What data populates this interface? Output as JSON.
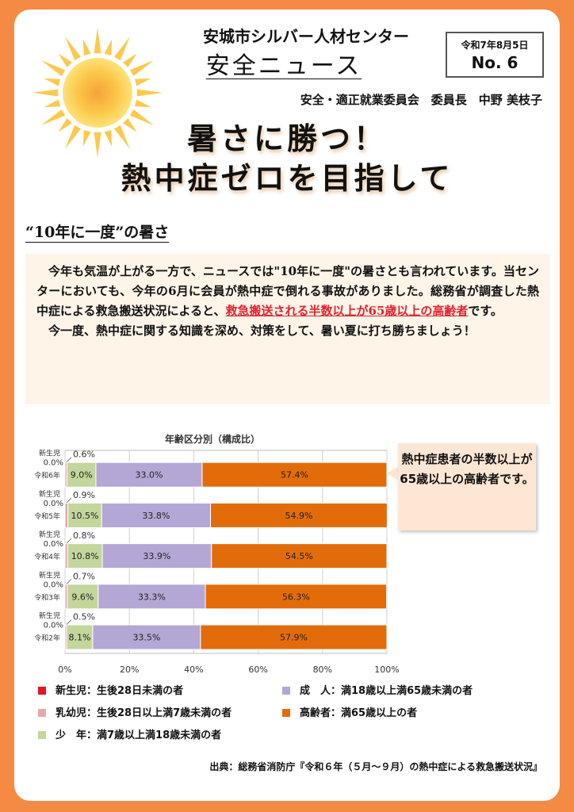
{
  "header": {
    "organization": "安城市シルバー人材センター",
    "newsletter_title": "安全ニュース",
    "issue_date": "令和7年8月5日",
    "issue_no": "No. 6",
    "committee": "安全・適正就業委員会　委員長　中野 美枝子"
  },
  "headline": {
    "line1": "暑さに勝つ！",
    "line2": "熱中症ゼロを目指して"
  },
  "section": {
    "title": "“10年に一度”の暑さ",
    "para1_before": "今年も気温が上がる一方で、ニュースでは\"10年に一度\"の暑さとも言われています。当センターにおいても、今年の6月に会員が熱中症で倒れる事故がありました。総務省が調査した熱中症による救急搬送状況によると、",
    "para1_highlight": "救急搬送される半数以上が65歳以上の高齢者",
    "para1_after": "です。",
    "para2": "今一度、熱中症に関する知識を深め、対策をして、暑い夏に打ち勝ちましょう！"
  },
  "callout": "熱中症患者の半数以上が65歳以上の高齢者です。",
  "legend": [
    {
      "label": "新生児：生後28日未満の者",
      "color": "#e8141e"
    },
    {
      "label": "成　人：満18歳以上満65歳未満の者",
      "color": "#b4a7d6"
    },
    {
      "label": "乳幼児：生後28日以上満7歳未満の者",
      "color": "#e8a7ab"
    },
    {
      "label": "高齢者：満65歳以上の者",
      "color": "#e36c0a"
    },
    {
      "label": "少　年：満7歳以上満18歳未満の者",
      "color": "#c3d69b"
    }
  ],
  "source": "出典：総務省消防庁『令和６年（５月～９月）の熱中症による救急搬送状況』",
  "chart_data": {
    "type": "bar",
    "orientation": "horizontal-stacked-100",
    "title": "年齢区分別（構成比）",
    "categories": [
      "令和6年",
      "令和5年",
      "令和4年",
      "令和3年",
      "令和2年"
    ],
    "series": [
      {
        "name": "新生児",
        "color": "#e8141e",
        "values": [
          0.0,
          0.0,
          0.0,
          0.0,
          0.0
        ],
        "labels": [
          "0.0%",
          "0.0%",
          "0.0%",
          "0.0%",
          "0.0%"
        ]
      },
      {
        "name": "乳幼児",
        "color": "#e8a7ab",
        "values": [
          0.6,
          0.9,
          0.8,
          0.7,
          0.5
        ],
        "labels": [
          "0.6%",
          "0.9%",
          "0.8%",
          "0.7%",
          "0.5%"
        ]
      },
      {
        "name": "少年",
        "color": "#c3d69b",
        "values": [
          9.0,
          10.5,
          10.8,
          9.6,
          8.1
        ],
        "labels": [
          "9.0%",
          "10.5%",
          "10.8%",
          "9.6%",
          "8.1%"
        ]
      },
      {
        "name": "成人",
        "color": "#b4a7d6",
        "values": [
          33.0,
          33.8,
          33.9,
          33.3,
          33.5
        ],
        "labels": [
          "33.0%",
          "33.8%",
          "33.9%",
          "33.3%",
          "33.5%"
        ]
      },
      {
        "name": "高齢者",
        "color": "#e36c0a",
        "values": [
          57.4,
          54.9,
          54.5,
          56.3,
          57.9
        ],
        "labels": [
          "57.4%",
          "54.9%",
          "54.5%",
          "56.3%",
          "57.9%"
        ]
      }
    ],
    "small_label_newborn": "新生児",
    "xticks": [
      "0%",
      "20%",
      "40%",
      "60%",
      "80%",
      "100%"
    ],
    "xlim": [
      0,
      100
    ],
    "grid": true
  }
}
